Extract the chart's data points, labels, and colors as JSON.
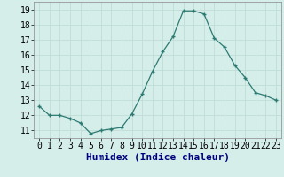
{
  "x": [
    0,
    1,
    2,
    3,
    4,
    5,
    6,
    7,
    8,
    9,
    10,
    11,
    12,
    13,
    14,
    15,
    16,
    17,
    18,
    19,
    20,
    21,
    22,
    23
  ],
  "y": [
    12.6,
    12.0,
    12.0,
    11.8,
    11.5,
    10.8,
    11.0,
    11.1,
    11.2,
    12.1,
    13.4,
    14.9,
    16.2,
    17.2,
    18.9,
    18.9,
    18.7,
    17.1,
    16.5,
    15.3,
    14.5,
    13.5,
    13.3,
    13.0
  ],
  "xlabel": "Humidex (Indice chaleur)",
  "xlim": [
    -0.5,
    23.5
  ],
  "ylim": [
    10.5,
    19.5
  ],
  "yticks": [
    11,
    12,
    13,
    14,
    15,
    16,
    17,
    18,
    19
  ],
  "xticks": [
    0,
    1,
    2,
    3,
    4,
    5,
    6,
    7,
    8,
    9,
    10,
    11,
    12,
    13,
    14,
    15,
    16,
    17,
    18,
    19,
    20,
    21,
    22,
    23
  ],
  "line_color": "#2d7a72",
  "marker": "+",
  "markersize": 3.5,
  "linewidth": 0.9,
  "bg_color": "#d5eeea",
  "grid_color": "#c0ddd8",
  "xlabel_fontsize": 8,
  "tick_fontsize": 7,
  "xlabel_fontweight": "bold",
  "xlabel_color": "#000080"
}
